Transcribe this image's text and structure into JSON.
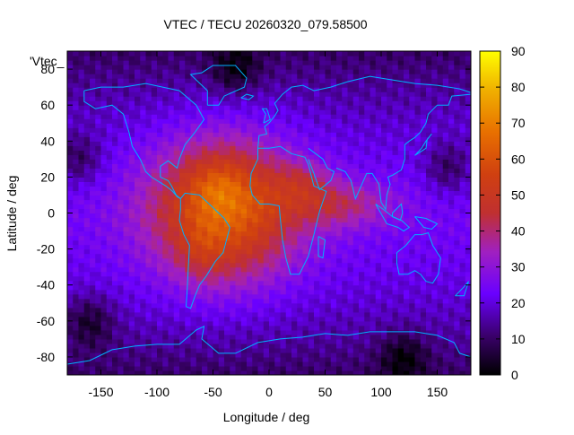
{
  "chart_data": {
    "type": "heatmap",
    "title": "VTEC / TECU 20260320_079.58500",
    "xlabel": "Longitude / deg",
    "ylabel": "Latitude / deg",
    "key_label": "'Vtec_",
    "xlim": [
      -180,
      180
    ],
    "ylim": [
      -90,
      90
    ],
    "x_ticks": [
      -150,
      -100,
      -50,
      0,
      50,
      100,
      150
    ],
    "y_ticks": [
      -80,
      -60,
      -40,
      -20,
      0,
      20,
      40,
      60,
      80
    ],
    "colorbar": {
      "range": [
        0,
        90
      ],
      "ticks": [
        0,
        10,
        20,
        30,
        40,
        50,
        60,
        70,
        80,
        90
      ],
      "palette": "black-purple-red-orange-yellow"
    },
    "grid": false,
    "description_of_field": "Gridded vertical total electron content map; maximum (~65-75 TECU) near 0-20N, 60W-30W over South America / Atlantic; elevated band extending east to ~110E near 0-10N; minima (<10 TECU) at high latitudes and near 150W,-60.",
    "peaks": [
      {
        "lon": -40,
        "lat": 15,
        "value": 72
      },
      {
        "lon": -55,
        "lat": -20,
        "value": 65
      },
      {
        "lon": -10,
        "lat": 12,
        "value": 62
      },
      {
        "lon": 30,
        "lat": 18,
        "value": 58
      },
      {
        "lon": 80,
        "lat": 10,
        "value": 50
      }
    ],
    "troughs": [
      {
        "lon": -160,
        "lat": -60,
        "value": 5
      },
      {
        "lon": -170,
        "lat": 30,
        "value": 12
      },
      {
        "lon": 160,
        "lat": 25,
        "value": 14
      },
      {
        "lon": 120,
        "lat": -80,
        "value": 8
      },
      {
        "lon": -30,
        "lat": 80,
        "value": 14
      }
    ]
  }
}
